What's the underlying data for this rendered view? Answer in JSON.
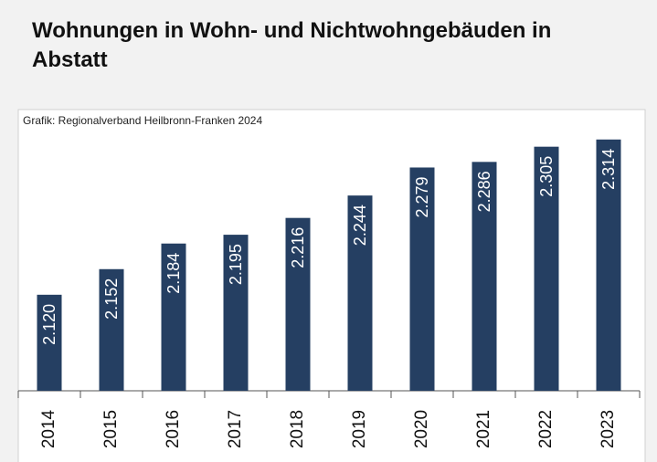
{
  "chart_data": {
    "type": "bar",
    "title": "Wohnungen in Wohn- und Nichtwohngebäuden in Abstatt",
    "subtitle": "Grafik: Regionalverband Heilbronn-Franken 2024",
    "categories": [
      "2014",
      "2015",
      "2016",
      "2017",
      "2018",
      "2019",
      "2020",
      "2021",
      "2022",
      "2023"
    ],
    "values": [
      2120,
      2152,
      2184,
      2195,
      2216,
      2244,
      2279,
      2286,
      2305,
      2314
    ],
    "value_labels": [
      "2.120",
      "2.152",
      "2.184",
      "2.195",
      "2.216",
      "2.244",
      "2.279",
      "2.286",
      "2.305",
      "2.314"
    ],
    "color": "#253f62",
    "ylim": [
      2000,
      2340
    ],
    "grid": false
  }
}
